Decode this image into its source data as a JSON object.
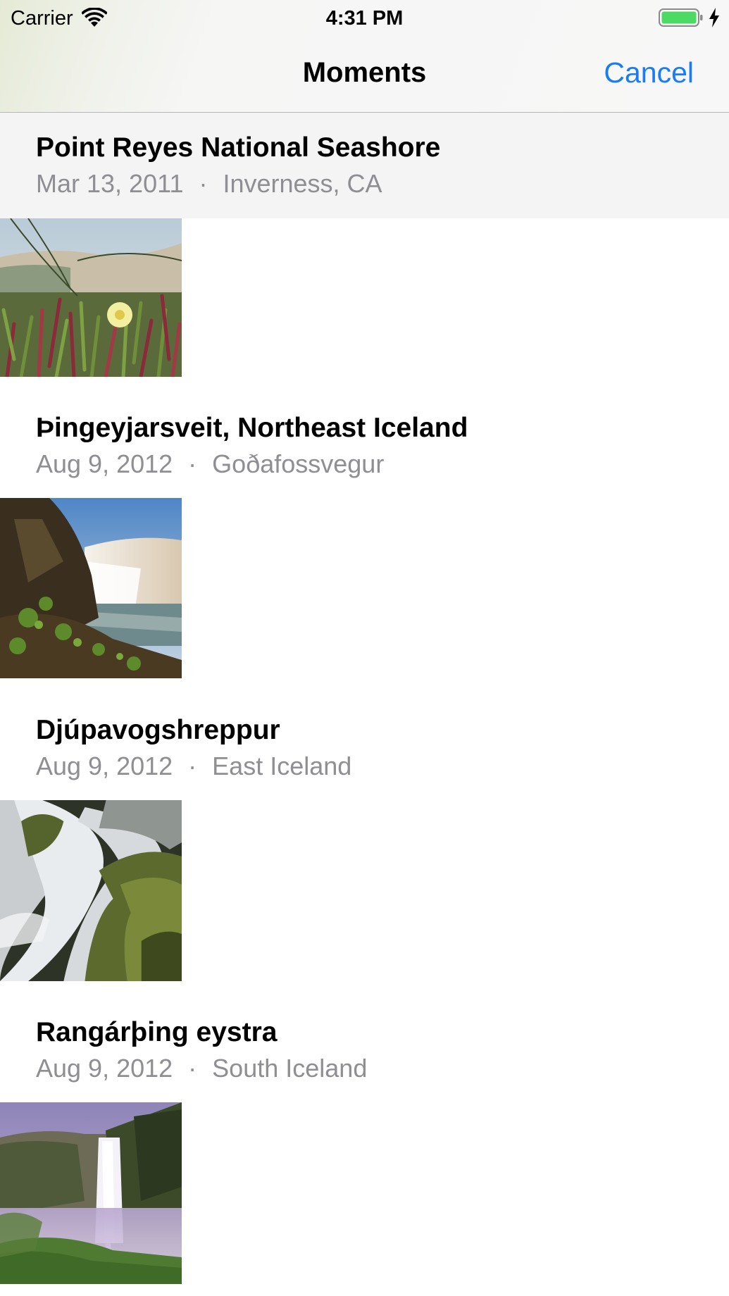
{
  "status_bar": {
    "carrier": "Carrier",
    "time": "4:31 PM",
    "battery_color": "#4cd964",
    "icons": [
      "wifi-icon",
      "battery-icon",
      "charging-icon"
    ]
  },
  "nav": {
    "title": "Moments",
    "cancel_label": "Cancel",
    "accent_color": "#1a7cf5"
  },
  "moments": [
    {
      "title": "Point Reyes National Seashore",
      "date": "Mar 13, 2011",
      "separator": "·",
      "location": "Inverness, CA",
      "photo": "dune-flower-photo"
    },
    {
      "title": "Þingeyjarsveit, Northeast Iceland",
      "date": "Aug 9, 2012",
      "separator": "·",
      "location": "Goðafossvegur",
      "photo": "waterfall-cliff-photo"
    },
    {
      "title": "Djúpavogshreppur",
      "date": "Aug 9, 2012",
      "separator": "·",
      "location": "East Iceland",
      "photo": "cascade-moss-photo"
    },
    {
      "title": "Rangárþing eystra",
      "date": "Aug 9, 2012",
      "separator": "·",
      "location": "South Iceland",
      "photo": "tall-waterfall-photo"
    }
  ]
}
